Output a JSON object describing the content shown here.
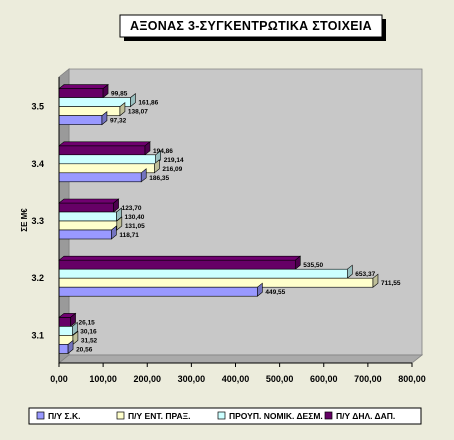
{
  "chart_data": {
    "type": "bar",
    "orientation": "horizontal",
    "title": "ΑΞΟΝΑΣ 3-ΣΥΓΚΕΝΤΡΩΤΙΚΑ ΣΤΟΙΧΕΙΑ",
    "ylabel": "ΣΕ Μ€",
    "xlabel": "",
    "categories": [
      "3.1",
      "3.2",
      "3.3",
      "3.4",
      "3.5"
    ],
    "xlim": [
      0,
      800
    ],
    "x_ticks": [
      "0,00",
      "100,00",
      "200,00",
      "300,00",
      "400,00",
      "500,00",
      "600,00",
      "700,00",
      "800,00"
    ],
    "legend_position": "bottom",
    "series": [
      {
        "name": "Π/Υ Σ.Κ.",
        "color": "#9999ff",
        "values": [
          20.56,
          449.55,
          118.71,
          186.35,
          97.32
        ],
        "labels": [
          "20,56",
          "449,55",
          "118,71",
          "186,35",
          "97,32"
        ]
      },
      {
        "name": "Π/Υ ΕΝΤ. ΠΡΑΞ.",
        "color": "#ffffcc",
        "values": [
          31.52,
          711.55,
          131.05,
          216.09,
          138.07
        ],
        "labels": [
          "31,52",
          "711,55",
          "131,05",
          "216,09",
          "138,07"
        ]
      },
      {
        "name": "ΠΡΟΥΠ. ΝΟΜΙΚ. ΔΕΣΜ.",
        "color": "#ccffff",
        "values": [
          30.16,
          653.37,
          130.4,
          219.14,
          161.86
        ],
        "labels": [
          "30,16",
          "653,37",
          "130,40",
          "219,14",
          "161,86"
        ]
      },
      {
        "name": "Π/Υ ΔΗΛ. ΔΑΠ.",
        "color": "#660066",
        "values": [
          26.15,
          535.5,
          123.7,
          194.86,
          99.85
        ],
        "labels": [
          "26,15",
          "535,50",
          "123,70",
          "194,86",
          "99,85"
        ]
      }
    ]
  }
}
